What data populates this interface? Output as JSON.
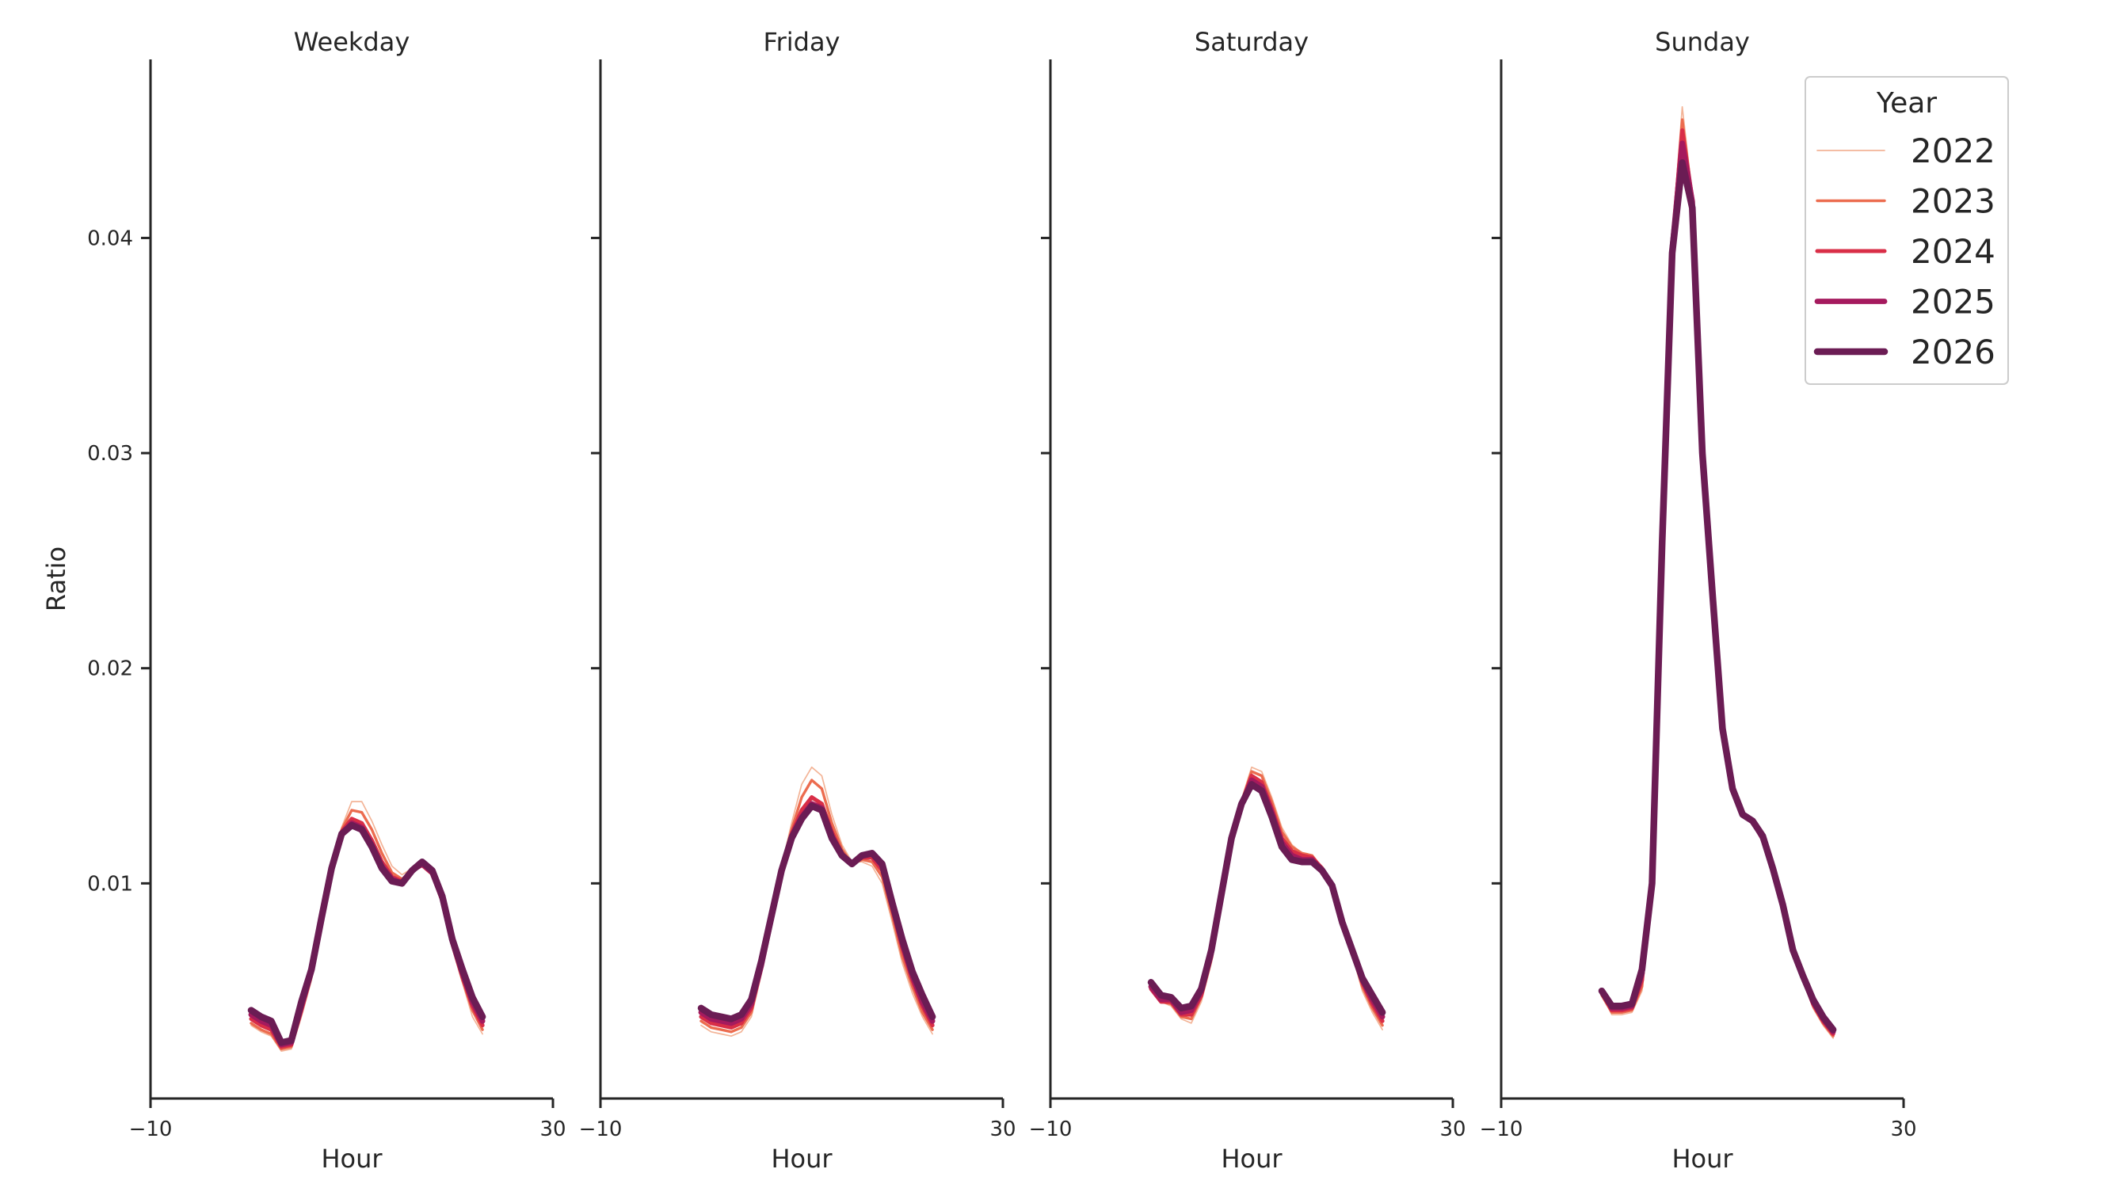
{
  "chart_data": {
    "type": "line",
    "ylabel": "Ratio",
    "yticks": [
      0.01,
      0.02,
      0.03,
      0.04
    ],
    "ytick_labels": [
      "0.01",
      "0.02",
      "0.03",
      "0.04"
    ],
    "ylim": [
      0.0,
      0.0483
    ],
    "xlabel": "Hour",
    "xlim": [
      -10,
      30
    ],
    "xticks": [
      -10,
      30
    ],
    "xtick_labels": [
      "−10",
      "30"
    ],
    "legend": {
      "title": "Year",
      "position": "top-right"
    },
    "series_styles": [
      {
        "name": "2022",
        "color": "#f3b497",
        "width": 1
      },
      {
        "name": "2023",
        "color": "#ec6c4f",
        "width": 2
      },
      {
        "name": "2024",
        "color": "#d92e47",
        "width": 3
      },
      {
        "name": "2025",
        "color": "#a51a5e",
        "width": 4
      },
      {
        "name": "2026",
        "color": "#6b1c54",
        "width": 5
      }
    ],
    "hours": [
      0,
      1,
      2,
      3,
      4,
      5,
      6,
      7,
      8,
      9,
      10,
      11,
      12,
      13,
      14,
      15,
      16,
      17,
      18,
      19,
      20,
      21,
      22,
      23
    ],
    "panels": [
      {
        "title": "Weekday",
        "series": [
          {
            "name": "2022",
            "values": [
              0.0034,
              0.0031,
              0.0029,
              0.0022,
              0.0023,
              0.0038,
              0.0055,
              0.008,
              0.0105,
              0.0126,
              0.0138,
              0.0138,
              0.0129,
              0.0118,
              0.0108,
              0.0104,
              0.0107,
              0.0108,
              0.0104,
              0.009,
              0.007,
              0.0054,
              0.0038,
              0.003
            ]
          },
          {
            "name": "2023",
            "values": [
              0.0035,
              0.0032,
              0.003,
              0.0023,
              0.0024,
              0.004,
              0.0057,
              0.0081,
              0.0106,
              0.0125,
              0.0134,
              0.0133,
              0.0125,
              0.0114,
              0.0105,
              0.0102,
              0.0106,
              0.0108,
              0.0104,
              0.0091,
              0.0071,
              0.0055,
              0.0041,
              0.0032
            ]
          },
          {
            "name": "2024",
            "values": [
              0.0037,
              0.0034,
              0.0032,
              0.0024,
              0.0025,
              0.0041,
              0.0058,
              0.0082,
              0.0107,
              0.0124,
              0.013,
              0.0128,
              0.012,
              0.011,
              0.0103,
              0.0101,
              0.0106,
              0.0109,
              0.0105,
              0.0092,
              0.0072,
              0.0057,
              0.0043,
              0.0034
            ]
          },
          {
            "name": "2025",
            "values": [
              0.0039,
              0.0036,
              0.0034,
              0.0025,
              0.0026,
              0.0043,
              0.0059,
              0.0083,
              0.0107,
              0.0123,
              0.0128,
              0.0126,
              0.0118,
              0.0108,
              0.0102,
              0.01,
              0.0106,
              0.0109,
              0.0105,
              0.0093,
              0.0073,
              0.0058,
              0.0045,
              0.0036
            ]
          },
          {
            "name": "2026",
            "values": [
              0.0041,
              0.0038,
              0.0036,
              0.0026,
              0.0027,
              0.0045,
              0.006,
              0.0084,
              0.0107,
              0.0123,
              0.0127,
              0.0125,
              0.0117,
              0.0107,
              0.0101,
              0.01,
              0.0106,
              0.011,
              0.0106,
              0.0094,
              0.0074,
              0.006,
              0.0047,
              0.0038
            ]
          }
        ]
      },
      {
        "title": "Friday",
        "series": [
          {
            "name": "2022",
            "values": [
              0.0034,
              0.0031,
              0.003,
              0.0029,
              0.0031,
              0.0038,
              0.0058,
              0.0082,
              0.0108,
              0.0128,
              0.0146,
              0.0154,
              0.015,
              0.0132,
              0.0118,
              0.011,
              0.011,
              0.0108,
              0.01,
              0.0082,
              0.0063,
              0.0049,
              0.0038,
              0.003
            ]
          },
          {
            "name": "2023",
            "values": [
              0.0036,
              0.0033,
              0.0032,
              0.0031,
              0.0033,
              0.004,
              0.006,
              0.0083,
              0.0107,
              0.0125,
              0.014,
              0.0148,
              0.0144,
              0.0128,
              0.0116,
              0.0109,
              0.0111,
              0.011,
              0.0103,
              0.0085,
              0.0066,
              0.0052,
              0.004,
              0.0032
            ]
          },
          {
            "name": "2024",
            "values": [
              0.0038,
              0.0035,
              0.0034,
              0.0033,
              0.0035,
              0.0042,
              0.0061,
              0.0083,
              0.0106,
              0.0123,
              0.0134,
              0.014,
              0.0137,
              0.0124,
              0.0114,
              0.0109,
              0.0112,
              0.0112,
              0.0106,
              0.0088,
              0.007,
              0.0055,
              0.0043,
              0.0034
            ]
          },
          {
            "name": "2025",
            "values": [
              0.004,
              0.0037,
              0.0036,
              0.0035,
              0.0037,
              0.0044,
              0.0062,
              0.0084,
              0.0106,
              0.0122,
              0.0131,
              0.0137,
              0.0135,
              0.0122,
              0.0113,
              0.0109,
              0.0113,
              0.0114,
              0.0108,
              0.009,
              0.0072,
              0.0057,
              0.0045,
              0.0036
            ]
          },
          {
            "name": "2026",
            "values": [
              0.0042,
              0.0039,
              0.0038,
              0.0037,
              0.0039,
              0.0046,
              0.0064,
              0.0085,
              0.0106,
              0.0121,
              0.013,
              0.0136,
              0.0134,
              0.0121,
              0.0113,
              0.0109,
              0.0113,
              0.0114,
              0.0109,
              0.0091,
              0.0074,
              0.0059,
              0.0048,
              0.0038
            ]
          }
        ]
      },
      {
        "title": "Saturday",
        "series": [
          {
            "name": "2022",
            "values": [
              0.0052,
              0.0045,
              0.0043,
              0.0037,
              0.0035,
              0.0045,
              0.0063,
              0.009,
              0.012,
              0.0139,
              0.0154,
              0.0152,
              0.014,
              0.0126,
              0.0118,
              0.0114,
              0.0113,
              0.0106,
              0.0098,
              0.008,
              0.0067,
              0.005,
              0.004,
              0.0032
            ]
          },
          {
            "name": "2023",
            "values": [
              0.0051,
              0.0045,
              0.0044,
              0.0038,
              0.0037,
              0.0047,
              0.0065,
              0.0092,
              0.012,
              0.0138,
              0.0152,
              0.015,
              0.0138,
              0.0124,
              0.0117,
              0.0114,
              0.0113,
              0.0107,
              0.0099,
              0.0081,
              0.0068,
              0.0052,
              0.0042,
              0.0034
            ]
          },
          {
            "name": "2024",
            "values": [
              0.0051,
              0.0045,
              0.0045,
              0.0039,
              0.0039,
              0.0048,
              0.0066,
              0.0093,
              0.012,
              0.0137,
              0.015,
              0.0147,
              0.0135,
              0.0121,
              0.0115,
              0.0113,
              0.0112,
              0.0107,
              0.0099,
              0.0082,
              0.0068,
              0.0054,
              0.0044,
              0.0036
            ]
          },
          {
            "name": "2025",
            "values": [
              0.0052,
              0.0046,
              0.0046,
              0.004,
              0.0041,
              0.005,
              0.0068,
              0.0094,
              0.012,
              0.0137,
              0.0148,
              0.0145,
              0.0133,
              0.0119,
              0.0113,
              0.0111,
              0.0111,
              0.0106,
              0.0099,
              0.0082,
              0.0069,
              0.0055,
              0.0046,
              0.0038
            ]
          },
          {
            "name": "2026",
            "values": [
              0.0054,
              0.0048,
              0.0047,
              0.0042,
              0.0043,
              0.0051,
              0.0069,
              0.0095,
              0.0121,
              0.0137,
              0.0146,
              0.0143,
              0.0131,
              0.0117,
              0.0111,
              0.011,
              0.011,
              0.0106,
              0.0099,
              0.0082,
              0.0069,
              0.0056,
              0.0048,
              0.004
            ]
          }
        ]
      },
      {
        "title": "Sunday",
        "series": [
          {
            "name": "2022",
            "values": [
              0.0048,
              0.0039,
              0.0039,
              0.004,
              0.005,
              0.011,
              0.027,
              0.04,
              0.0461,
              0.042,
              0.031,
              0.0232,
              0.0174,
              0.0145,
              0.0132,
              0.0128,
              0.012,
              0.0107,
              0.009,
              0.0068,
              0.0056,
              0.0042,
              0.0034,
              0.0028
            ]
          },
          {
            "name": "2023",
            "values": [
              0.0048,
              0.004,
              0.004,
              0.0041,
              0.0052,
              0.0108,
              0.0268,
              0.0398,
              0.0455,
              0.0418,
              0.0308,
              0.0233,
              0.0173,
              0.0145,
              0.0132,
              0.0128,
              0.0121,
              0.0107,
              0.009,
              0.0068,
              0.0056,
              0.0043,
              0.0035,
              0.0029
            ]
          },
          {
            "name": "2024",
            "values": [
              0.0049,
              0.0041,
              0.0041,
              0.0042,
              0.0055,
              0.0104,
              0.0265,
              0.0396,
              0.045,
              0.0418,
              0.0305,
              0.0234,
              0.0173,
              0.0144,
              0.0132,
              0.0129,
              0.0121,
              0.0107,
              0.009,
              0.0069,
              0.0056,
              0.0044,
              0.0036,
              0.003
            ]
          },
          {
            "name": "2025",
            "values": [
              0.005,
              0.0042,
              0.0042,
              0.0043,
              0.0058,
              0.0102,
              0.0262,
              0.0395,
              0.0444,
              0.0417,
              0.0302,
              0.0235,
              0.0172,
              0.0144,
              0.0132,
              0.0129,
              0.0121,
              0.0107,
              0.009,
              0.0069,
              0.0057,
              0.0045,
              0.0037,
              0.0031
            ]
          },
          {
            "name": "2026",
            "values": [
              0.005,
              0.0043,
              0.0043,
              0.0044,
              0.006,
              0.01,
              0.0258,
              0.0393,
              0.0435,
              0.0414,
              0.03,
              0.0235,
              0.0172,
              0.0144,
              0.0132,
              0.0129,
              0.0122,
              0.0107,
              0.009,
              0.0069,
              0.0057,
              0.0046,
              0.0038,
              0.0032
            ]
          }
        ]
      }
    ]
  }
}
